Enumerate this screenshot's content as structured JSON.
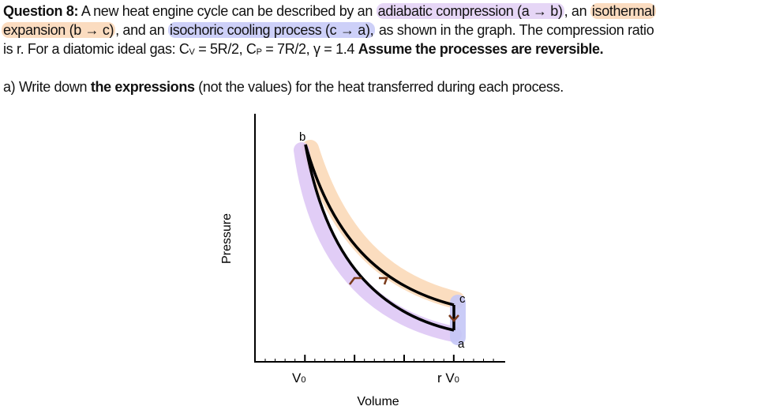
{
  "question": {
    "label": "Question 8:",
    "line1_pre": " A new heat engine cycle can be described by an ",
    "adiabatic": "adiabatic compression (a → b)",
    "line1_mid": ", an ",
    "isothermal_a": "isothermal",
    "isothermal_b": "expansion (b → c)",
    "line2_mid": ", and an ",
    "isochoric": "isochoric cooling process (c → a),",
    "line2_post": " as shown in the graph. The compression ratio",
    "line3_pre": "is r. For a diatomic ideal gas: C",
    "cv_sub": "V",
    "cv_val": " = 5R/2, C",
    "cp_sub": "P",
    "cp_val": " = 7R/2, γ = 1.4 ",
    "assume": "Assume the processes are reversible."
  },
  "part_a": {
    "pre": "a) Write down ",
    "bold": "the expressions",
    "post": " (not the values) for the heat transferred during each process."
  },
  "diagram": {
    "ylabel": "Pressure",
    "xlabel": "Volume",
    "tick_v0": "V",
    "tick_v0_sub": "0",
    "tick_rv0": "r V",
    "tick_rv0_sub": "0",
    "point_b": "b",
    "point_c": "c",
    "point_a": "a",
    "colors": {
      "adiabatic_highlight": "#dcc4f4",
      "isothermal_highlight": "#fbd9b8",
      "isochoric_highlight": "#c4c6f6",
      "arrow": "#7a3a1a",
      "curve": "#000000"
    }
  }
}
